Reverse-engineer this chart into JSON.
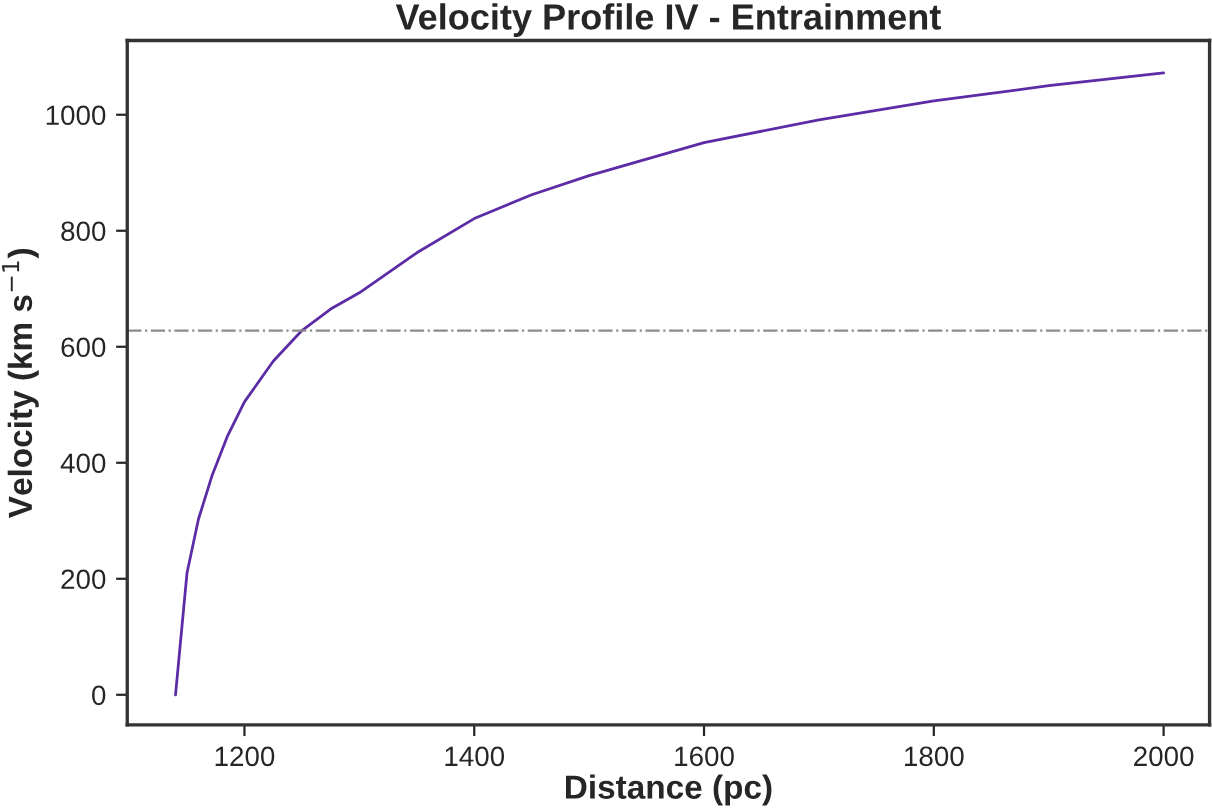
{
  "chart_data": {
    "type": "line",
    "title": "Velocity Profile IV - Entrainment",
    "xlabel": "Distance (pc)",
    "ylabel": "Velocity (km s$^{−1}$)",
    "x": [
      1140,
      1150,
      1160,
      1172,
      1185,
      1200,
      1225,
      1250,
      1275,
      1300,
      1350,
      1400,
      1450,
      1500,
      1600,
      1700,
      1800,
      1900,
      2000
    ],
    "series": [
      {
        "color": "#5b2ca6",
        "values": [
          0,
          210,
          303,
          379,
          445,
          505,
          575,
          628,
          665,
          693,
          762,
          821,
          862,
          895,
          952,
          991,
          1024,
          1050,
          1072
        ]
      }
    ],
    "xlim": [
      1098,
      2040
    ],
    "ylim": [
      -52,
      1128
    ],
    "xticks": [
      1200,
      1400,
      1600,
      1800,
      2000
    ],
    "yticks": [
      0,
      200,
      400,
      600,
      800,
      1000
    ],
    "ref_lines": [
      {
        "axis": "y",
        "value": 628,
        "color": "#8c8c8c",
        "line_style": "dashdot"
      }
    ],
    "grid": false,
    "legend": false,
    "marker": "none",
    "line_style": "solid"
  }
}
